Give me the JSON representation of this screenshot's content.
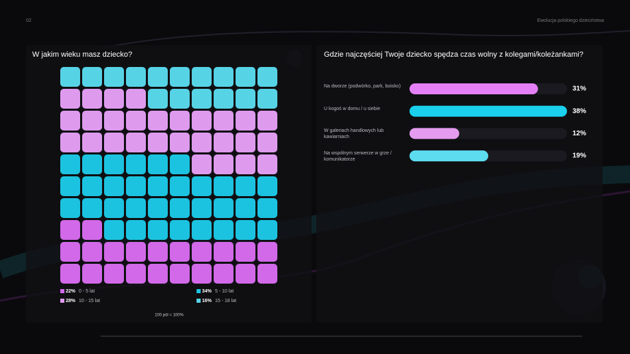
{
  "header": {
    "page": "02",
    "title": "Ewolucja polskiego dzieciństwa"
  },
  "chart_data": [
    {
      "type": "waffle",
      "title": "W jakim wieku masz dziecko?",
      "categories": [
        "0 - 5 lat",
        "5 - 10 lat",
        "10 - 15 lat",
        "15 - 18 lat"
      ],
      "values": [
        22,
        34,
        28,
        16
      ],
      "value_labels": [
        "22%",
        "34%",
        "28%",
        "16%"
      ],
      "colors": [
        "#d169e8",
        "#1cc3e0",
        "#de9bee",
        "#57d3e6"
      ],
      "note": "100 pól = 100%"
    },
    {
      "type": "hbar",
      "title": "Gdzie najczęściej Twoje dziecko spędza czas wolny z kolegami/koleżankami?",
      "categories": [
        "Na dworze (podwórko, park, boisko)",
        "U kogoś w domu / u siebie",
        "W galeriach handlowych lub kawiarniach",
        "Na wspólnym serwerze w grze / komunikatorze"
      ],
      "values": [
        31,
        38,
        12,
        19
      ],
      "value_labels": [
        "31%",
        "38%",
        "12%",
        "19%"
      ],
      "colors": [
        "#e57ff5",
        "#1ad0ec",
        "#e59cf0",
        "#5ddcf0"
      ],
      "xlim": [
        0,
        38
      ]
    }
  ]
}
